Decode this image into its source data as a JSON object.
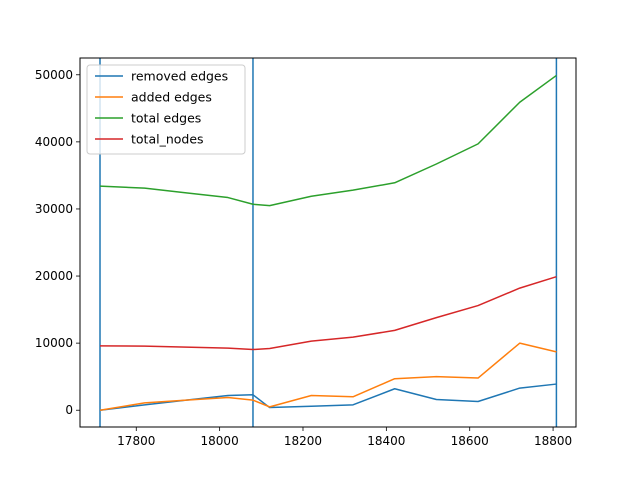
{
  "chart_data": {
    "type": "line",
    "xlim": [
      17665,
      18855
    ],
    "ylim": [
      -2500,
      52500
    ],
    "x_ticks": [
      17800,
      18000,
      18200,
      18400,
      18600,
      18800
    ],
    "y_ticks": [
      0,
      10000,
      20000,
      30000,
      40000,
      50000
    ],
    "vlines": {
      "x": [
        17713,
        18080,
        18808
      ],
      "color": "#1f77b4"
    },
    "legend_position": "upper-left",
    "series": [
      {
        "name": "removed edges",
        "color": "#1f77b4",
        "x": [
          17713,
          17820,
          17920,
          18020,
          18080,
          18120,
          18220,
          18320,
          18420,
          18520,
          18620,
          18720,
          18808
        ],
        "y": [
          0,
          800,
          1500,
          2200,
          2300,
          400,
          600,
          800,
          3200,
          1600,
          1300,
          3300,
          3900
        ]
      },
      {
        "name": "added edges",
        "color": "#ff7f0e",
        "x": [
          17713,
          17820,
          17920,
          18020,
          18080,
          18120,
          18220,
          18320,
          18420,
          18520,
          18620,
          18720,
          18808
        ],
        "y": [
          0,
          1100,
          1500,
          1900,
          1500,
          500,
          2200,
          2000,
          4700,
          5000,
          4800,
          10000,
          8700
        ]
      },
      {
        "name": "total edges",
        "color": "#2ca02c",
        "x": [
          17713,
          17820,
          17920,
          18020,
          18080,
          18120,
          18220,
          18320,
          18420,
          18520,
          18620,
          18720,
          18808
        ],
        "y": [
          33400,
          33100,
          32400,
          31700,
          30700,
          30500,
          31900,
          32800,
          33900,
          36700,
          39700,
          45900,
          49900
        ]
      },
      {
        "name": "total_nodes",
        "color": "#d62728",
        "x": [
          17713,
          17820,
          17920,
          18020,
          18080,
          18120,
          18220,
          18320,
          18420,
          18520,
          18620,
          18720,
          18808
        ],
        "y": [
          9600,
          9550,
          9400,
          9250,
          9050,
          9200,
          10300,
          10900,
          11900,
          13800,
          15600,
          18200,
          19900
        ]
      }
    ]
  }
}
